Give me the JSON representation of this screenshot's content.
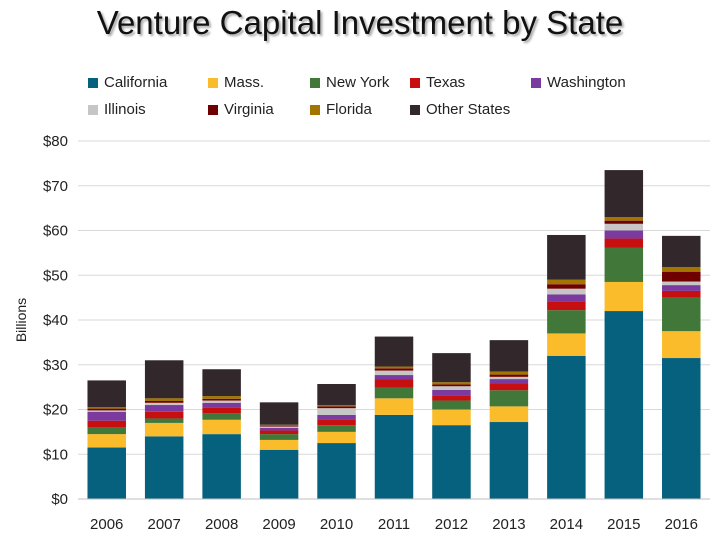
{
  "chart_data": {
    "type": "bar",
    "stacked": true,
    "title": "Venture Capital Investment by State",
    "xlabel": "",
    "ylabel": "Billions",
    "ylim": [
      0,
      80
    ],
    "yticks": [
      0,
      10,
      20,
      30,
      40,
      50,
      60,
      70,
      80
    ],
    "ytick_labels": [
      "$0",
      "$10",
      "$20",
      "$30",
      "$40",
      "$50",
      "$60",
      "$70",
      "$80"
    ],
    "grid": true,
    "legend_position": "top",
    "categories": [
      "2006",
      "2007",
      "2008",
      "2009",
      "2010",
      "2011",
      "2012",
      "2013",
      "2014",
      "2015",
      "2016"
    ],
    "series": [
      {
        "name": "California",
        "color": "#05617e",
        "values": [
          11.5,
          14,
          14.5,
          11,
          12.5,
          18.8,
          16.5,
          17.2,
          32,
          42,
          31.5
        ]
      },
      {
        "name": "Mass.",
        "color": "#fbbc2b",
        "values": [
          3,
          3,
          3.2,
          2.2,
          2.5,
          3.7,
          3.5,
          3.5,
          5,
          6.5,
          6
        ]
      },
      {
        "name": "New York",
        "color": "#41783a",
        "values": [
          1.5,
          1,
          1.5,
          1.3,
          1.5,
          2.4,
          2,
          3.6,
          5.2,
          7.7,
          7.5
        ]
      },
      {
        "name": "Texas",
        "color": "#c70f0f",
        "values": [
          1.5,
          1.5,
          1.3,
          0.8,
          1.3,
          1.8,
          1.2,
          1.5,
          2,
          2,
          1.5
        ]
      },
      {
        "name": "Washington",
        "color": "#7b3a9e",
        "values": [
          2,
          1.5,
          1,
          0.6,
          1,
          1,
          1.2,
          1,
          1.5,
          1.8,
          1.3
        ]
      },
      {
        "name": "Illinois",
        "color": "#c6c6c6",
        "values": [
          0.3,
          0.5,
          0.5,
          0.3,
          1.5,
          1,
          0.8,
          0.5,
          1.3,
          1.5,
          0.8
        ]
      },
      {
        "name": "Virginia",
        "color": "#6e0000",
        "values": [
          0.4,
          0.4,
          0.4,
          0.2,
          0.4,
          0.5,
          0.4,
          0.5,
          1,
          0.7,
          2.2
        ]
      },
      {
        "name": "Florida",
        "color": "#a37400",
        "values": [
          0.3,
          0.6,
          0.6,
          0.2,
          0.3,
          0.4,
          0.5,
          0.7,
          1,
          0.8,
          1
        ]
      },
      {
        "name": "Other States",
        "color": "#32282b",
        "values": [
          6,
          8.5,
          6,
          5,
          4.7,
          6.7,
          6.5,
          7,
          10,
          10.5,
          7
        ]
      }
    ]
  }
}
